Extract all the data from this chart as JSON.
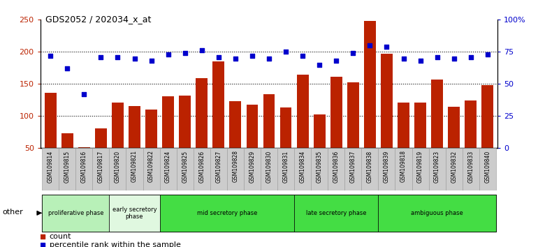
{
  "title": "GDS2052 / 202034_x_at",
  "samples": [
    "GSM109814",
    "GSM109815",
    "GSM109816",
    "GSM109817",
    "GSM109820",
    "GSM109821",
    "GSM109822",
    "GSM109824",
    "GSM109825",
    "GSM109826",
    "GSM109827",
    "GSM109828",
    "GSM109829",
    "GSM109830",
    "GSM109831",
    "GSM109834",
    "GSM109835",
    "GSM109836",
    "GSM109837",
    "GSM109838",
    "GSM109839",
    "GSM109818",
    "GSM109819",
    "GSM109823",
    "GSM109832",
    "GSM109833",
    "GSM109840"
  ],
  "counts": [
    136,
    73,
    52,
    81,
    121,
    116,
    110,
    131,
    132,
    159,
    185,
    123,
    118,
    134,
    113,
    164,
    103,
    161,
    153,
    248,
    197,
    121,
    121,
    157,
    114,
    124,
    148
  ],
  "percentiles": [
    72,
    62,
    42,
    71,
    71,
    70,
    68,
    73,
    74,
    76,
    71,
    70,
    72,
    70,
    75,
    72,
    65,
    68,
    74,
    80,
    79,
    70,
    68,
    71,
    70,
    71,
    73
  ],
  "phases": [
    {
      "name": "proliferative phase",
      "start": 0,
      "end": 4,
      "color": "#b8f0b8"
    },
    {
      "name": "early secretory\nphase",
      "start": 4,
      "end": 7,
      "color": "#e0f8e0"
    },
    {
      "name": "mid secretory phase",
      "start": 7,
      "end": 15,
      "color": "#44dd44"
    },
    {
      "name": "late secretory phase",
      "start": 15,
      "end": 20,
      "color": "#44dd44"
    },
    {
      "name": "ambiguous phase",
      "start": 20,
      "end": 27,
      "color": "#44dd44"
    }
  ],
  "bar_color": "#bb2200",
  "dot_color": "#0000cc",
  "ylim_left": [
    50,
    250
  ],
  "ylim_right": [
    0,
    100
  ],
  "yticks_left": [
    50,
    100,
    150,
    200,
    250
  ],
  "yticks_right": [
    0,
    25,
    50,
    75,
    100
  ],
  "ytick_labels_right": [
    "0",
    "25",
    "50",
    "75",
    "100%"
  ],
  "legend_count_label": "count",
  "legend_percentile_label": "percentile rank within the sample",
  "other_label": "other",
  "xtick_bg_color": "#cccccc",
  "xtick_border_color": "#999999"
}
